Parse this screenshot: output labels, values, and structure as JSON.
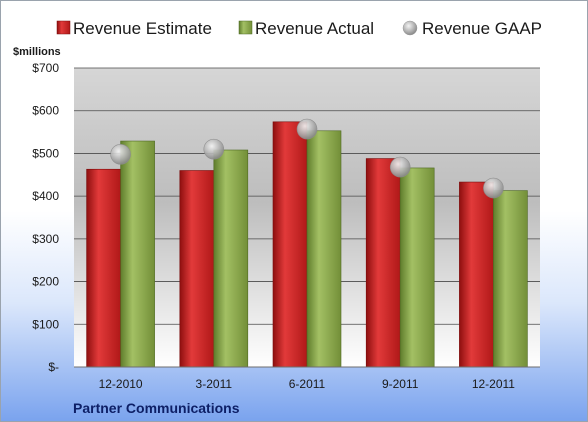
{
  "chart_data": {
    "type": "bar",
    "unit_label": "$millions",
    "categories": [
      "12-2010",
      "3-2011",
      "6-2011",
      "9-2011",
      "12-2011"
    ],
    "series": [
      {
        "name": "Revenue Estimate",
        "kind": "bar",
        "color": "#cc1f1f",
        "values": [
          463,
          460,
          574,
          488,
          433
        ]
      },
      {
        "name": "Revenue Actual",
        "kind": "bar",
        "color": "#8aa84a",
        "values": [
          529,
          508,
          553,
          466,
          413
        ]
      },
      {
        "name": "Revenue GAAP",
        "kind": "marker",
        "color": "#b8b8b8",
        "values": [
          498,
          510,
          557,
          468,
          419
        ]
      }
    ],
    "ylim": [
      0,
      700
    ],
    "yticks": [
      0,
      100,
      200,
      300,
      400,
      500,
      600,
      700
    ],
    "ytick_labels": [
      "$-",
      "$100",
      "$200",
      "$300",
      "$400",
      "$500",
      "$600",
      "$700"
    ],
    "grid": true,
    "legend_position": "top",
    "company": "Partner Communications"
  }
}
